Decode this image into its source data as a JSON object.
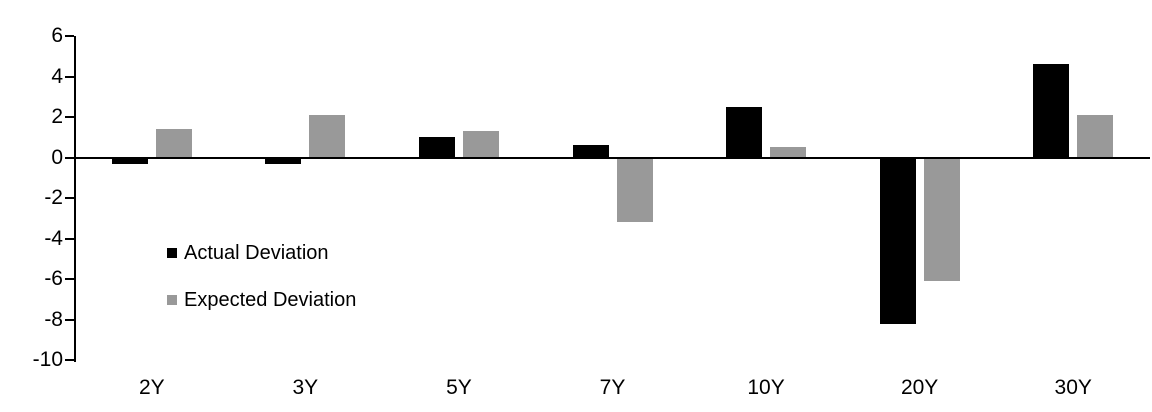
{
  "chart_data": {
    "type": "bar",
    "title": "",
    "categories": [
      "2Y",
      "3Y",
      "5Y",
      "7Y",
      "10Y",
      "20Y",
      "30Y"
    ],
    "series": [
      {
        "name": "Actual Deviation",
        "color": "#000000",
        "values": [
          -0.3,
          -0.3,
          1.0,
          0.6,
          2.5,
          -8.2,
          4.6
        ]
      },
      {
        "name": "Expected Deviation",
        "color": "#999999",
        "values": [
          1.4,
          2.1,
          1.3,
          -3.2,
          0.5,
          -6.1,
          2.1
        ]
      }
    ],
    "y_axis": {
      "min": -10,
      "max": 6,
      "step": 2,
      "ticks": [
        6,
        4,
        2,
        0,
        -2,
        -4,
        -6,
        -8,
        -10
      ]
    },
    "legend": {
      "position": "inside-plot-left"
    },
    "grid": false,
    "axis_color": "#000000",
    "background": "#ffffff"
  }
}
